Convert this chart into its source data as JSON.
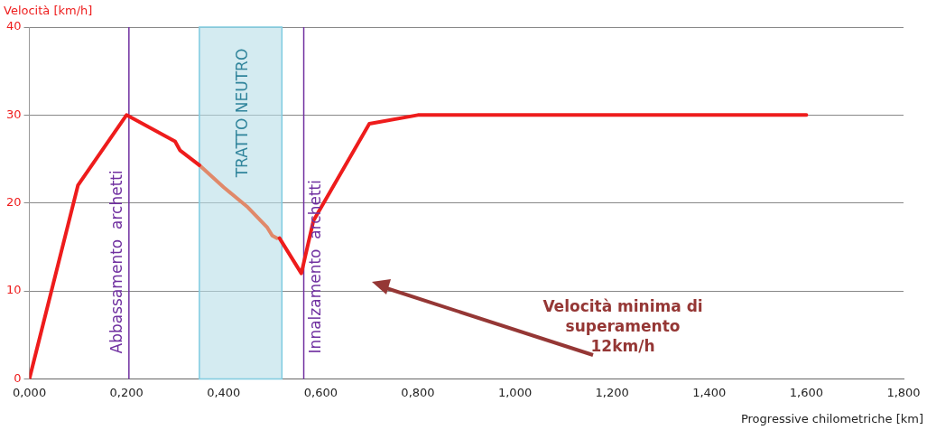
{
  "chart_data": {
    "type": "line",
    "xlabel": "Progressive chilometriche [km]",
    "ylabel": "Velocità [km/h]",
    "xlim": [
      0,
      1.8
    ],
    "xticks": [
      {
        "value": 0,
        "label": "0,000"
      },
      {
        "value": 0.2,
        "label": "0,200"
      },
      {
        "value": 0.4,
        "label": "0,400"
      },
      {
        "value": 0.6,
        "label": "0,600"
      },
      {
        "value": 0.8,
        "label": "0,800"
      },
      {
        "value": 1,
        "label": "1,000"
      },
      {
        "value": 1.2,
        "label": "1,200"
      },
      {
        "value": 1.4,
        "label": "1,400"
      },
      {
        "value": 1.6,
        "label": "1,600"
      },
      {
        "value": 1.8,
        "label": "1,800"
      }
    ],
    "ylim": [
      0,
      40
    ],
    "yticks": [
      0,
      10,
      20,
      30,
      40
    ],
    "grid": "y",
    "legend": false,
    "marker": "none",
    "line_style": "solid",
    "series": [
      {
        "color": "#ee1c1c",
        "x": [
          0,
          0.1,
          0.2,
          0.3,
          0.31,
          0.35,
          0.43,
          0.515,
          0.56,
          0.585,
          0.7,
          0.8,
          1.6
        ],
        "values": [
          0,
          22,
          30,
          27,
          26,
          24.3,
          null,
          16,
          12,
          18,
          29,
          30,
          30
        ]
      },
      {
        "color": "#e0896a",
        "x": [
          0.35,
          0.4,
          0.45,
          0.49,
          0.5,
          0.51
        ],
        "values": [
          24.3,
          21.8,
          19.5,
          17.2,
          16.3,
          16
        ]
      }
    ],
    "ref_lines": [
      {
        "axis": "x",
        "value": 0.205,
        "label": "Abbassamento  archetti",
        "color": "#7030a0"
      },
      {
        "axis": "x",
        "value": 0.565,
        "label": "Innalzamento  archetti",
        "color": "#7030a0"
      }
    ],
    "bands": [
      {
        "axis": "x",
        "from": 0.35,
        "to": 0.52,
        "label": "TRATTO NEUTRO",
        "color": "#b7dde8"
      }
    ],
    "annotations": [
      "Velocità minima di superamento 12km/h"
    ]
  }
}
